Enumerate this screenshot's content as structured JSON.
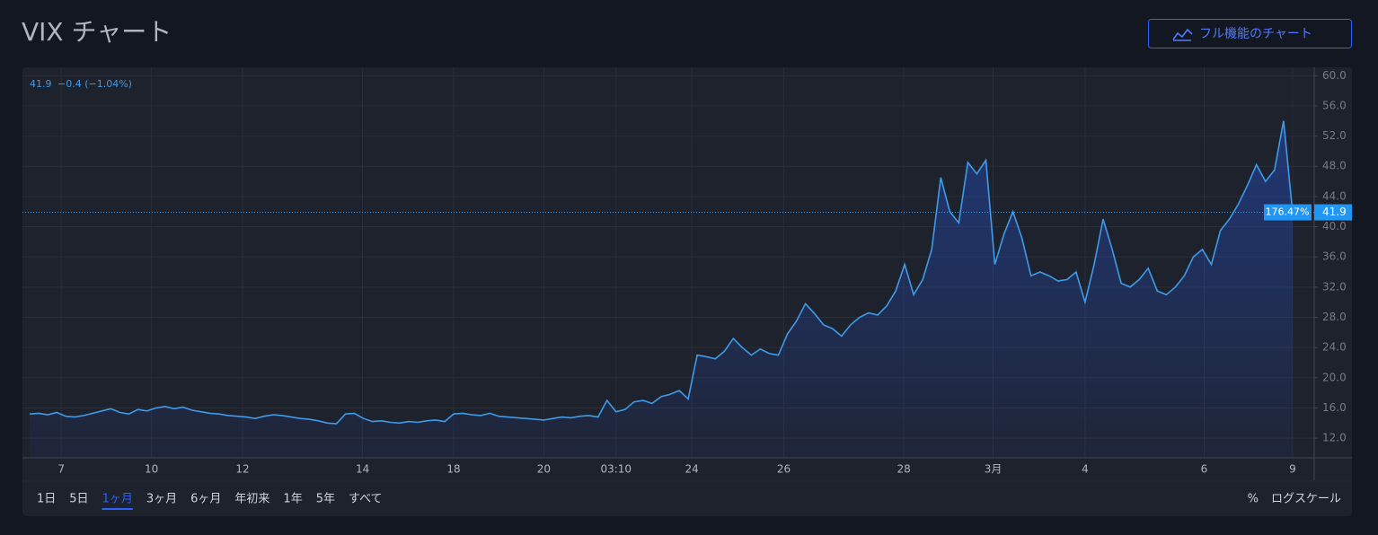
{
  "header": {
    "title": "VIX チャート",
    "button": "フル機能のチャート"
  },
  "chart_data": {
    "type": "line",
    "status": {
      "last": "41.9",
      "change": "−0.4 (−1.04%)"
    },
    "series": [
      {
        "name": "VIX",
        "color": "#3d9be9",
        "values": [
          15.2,
          15.3,
          15.1,
          15.4,
          14.9,
          14.8,
          15.0,
          15.3,
          15.6,
          15.9,
          15.4,
          15.2,
          15.8,
          15.6,
          16.0,
          16.2,
          15.9,
          16.1,
          15.7,
          15.5,
          15.3,
          15.2,
          15.0,
          14.9,
          14.8,
          14.6,
          14.9,
          15.1,
          15.0,
          14.8,
          14.6,
          14.5,
          14.3,
          14.0,
          13.9,
          15.2,
          15.3,
          14.6,
          14.2,
          14.3,
          14.1,
          14.0,
          14.2,
          14.1,
          14.3,
          14.4,
          14.2,
          15.2,
          15.3,
          15.1,
          15.0,
          15.3,
          14.9,
          14.8,
          14.7,
          14.6,
          14.5,
          14.4,
          14.6,
          14.8,
          14.7,
          14.9,
          15.0,
          14.8,
          17.0,
          15.5,
          15.8,
          16.8,
          17.0,
          16.6,
          17.5,
          17.8,
          18.3,
          17.2,
          23.0,
          22.8,
          22.5,
          23.5,
          25.2,
          24.0,
          23.0,
          23.8,
          23.2,
          23.0,
          25.8,
          27.5,
          29.8,
          28.5,
          27.0,
          26.5,
          25.5,
          27.0,
          28.0,
          28.6,
          28.3,
          29.5,
          31.5,
          35.0,
          31.0,
          33.0,
          37.0,
          46.5,
          42.0,
          40.5,
          48.5,
          47.0,
          48.8,
          35.0,
          39.0,
          42.0,
          38.5,
          33.5,
          34.0,
          33.5,
          32.8,
          33.0,
          34.0,
          30.0,
          35.0,
          41.0,
          37.0,
          32.5,
          32.0,
          33.0,
          34.5,
          31.5,
          31.0,
          32.0,
          33.5,
          36.0,
          37.0,
          35.0,
          39.5,
          41.0,
          43.0,
          45.5,
          48.2,
          46.0,
          47.5,
          54.0,
          41.9
        ]
      }
    ],
    "last_value": 41.9,
    "last_label": "41.9",
    "change_label": "176.47%",
    "xlim": [
      -0.8,
      142.4
    ],
    "xticks": [
      {
        "value": 3.5,
        "label": "7"
      },
      {
        "value": 13.5,
        "label": "10"
      },
      {
        "value": 23.6,
        "label": "12"
      },
      {
        "value": 36.9,
        "label": "14"
      },
      {
        "value": 47,
        "label": "18"
      },
      {
        "value": 57,
        "label": "20"
      },
      {
        "value": 65,
        "label": "03:10"
      },
      {
        "value": 73.4,
        "label": "24"
      },
      {
        "value": 83.6,
        "label": "26"
      },
      {
        "value": 96.9,
        "label": "28"
      },
      {
        "value": 106.8,
        "label": "3月"
      },
      {
        "value": 117,
        "label": "4"
      },
      {
        "value": 130.2,
        "label": "6"
      },
      {
        "value": 140,
        "label": "9"
      }
    ],
    "ylim": [
      9.4,
      61.1
    ],
    "yticks": [
      {
        "value": 12,
        "label": "12.0"
      },
      {
        "value": 16,
        "label": "16.0"
      },
      {
        "value": 20,
        "label": "20.0"
      },
      {
        "value": 24,
        "label": "24.0"
      },
      {
        "value": 28,
        "label": "28.0"
      },
      {
        "value": 32,
        "label": "32.0"
      },
      {
        "value": 36,
        "label": "36.0"
      },
      {
        "value": 40,
        "label": "40.0"
      },
      {
        "value": 44,
        "label": "44.0"
      },
      {
        "value": 48,
        "label": "48.0"
      },
      {
        "value": 52,
        "label": "52.0"
      },
      {
        "value": 56,
        "label": "56.0"
      },
      {
        "value": 60,
        "label": "60.0"
      }
    ],
    "grid": true
  },
  "ranges": {
    "items": [
      "1日",
      "5日",
      "1ヶ月",
      "3ヶ月",
      "6ヶ月",
      "年初来",
      "1年",
      "5年",
      "すべて"
    ],
    "active": 2
  },
  "options": [
    "%",
    "ログスケール"
  ]
}
